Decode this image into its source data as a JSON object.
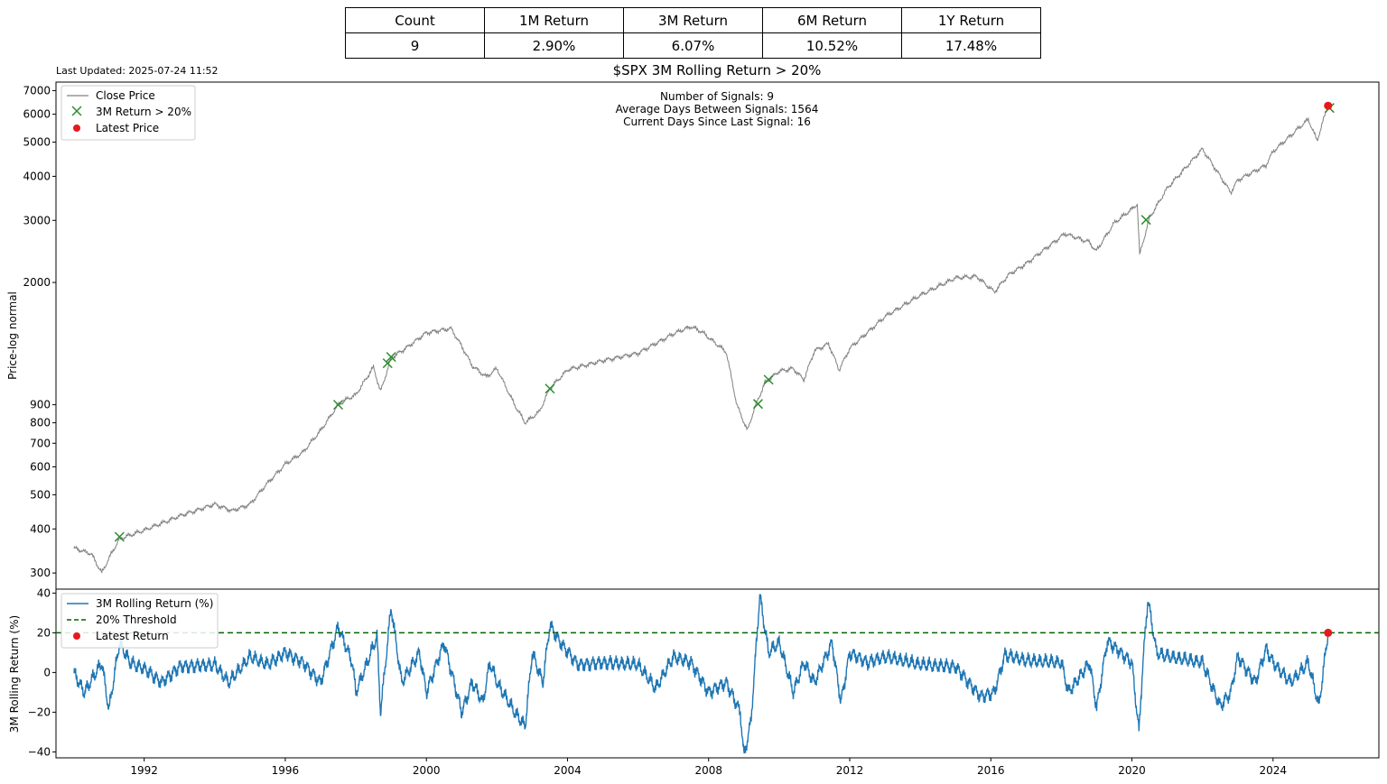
{
  "stats": {
    "headers": [
      "Count",
      "1M Return",
      "3M Return",
      "6M Return",
      "1Y Return"
    ],
    "values": [
      "9",
      "2.90%",
      "6.07%",
      "10.52%",
      "17.48%"
    ]
  },
  "last_updated": "Last Updated: 2025-07-24 11:52",
  "chart_data": [
    {
      "type": "line",
      "title": "$SPX 3M Rolling Return > 20%",
      "ylabel": "Price-log normal",
      "yscale": "log",
      "ylim": [
        270,
        7400
      ],
      "xlim": [
        1989.5,
        2027.0
      ],
      "y_ticks": [
        300,
        400,
        500,
        600,
        700,
        800,
        900,
        2000,
        3000,
        4000,
        5000,
        6000,
        7000
      ],
      "annotations": [
        "Number of Signals: 9",
        "Average Days Between Signals: 1564",
        "Current Days Since Last Signal: 16"
      ],
      "legend": [
        "Close Price",
        "3M Return > 20%",
        "Latest Price"
      ],
      "legend_position": "upper-left",
      "colors": {
        "close": "#808080",
        "signal": "#2e8b2e",
        "latest": "#e41a1c"
      },
      "series": [
        {
          "name": "Close Price",
          "x": [
            1990.0,
            1990.5,
            1990.8,
            1991.0,
            1991.3,
            1991.8,
            1992.5,
            1993.0,
            1994.0,
            1994.5,
            1995.0,
            1995.5,
            1996.0,
            1996.5,
            1997.0,
            1997.5,
            1997.8,
            1998.0,
            1998.5,
            1998.7,
            1999.0,
            1999.5,
            2000.0,
            2000.7,
            2001.0,
            2001.3,
            2001.7,
            2002.0,
            2002.5,
            2002.8,
            2003.2,
            2003.5,
            2004.0,
            2005.0,
            2006.0,
            2007.0,
            2007.5,
            2007.8,
            2008.5,
            2008.8,
            2009.1,
            2009.3,
            2009.6,
            2010.0,
            2010.4,
            2010.7,
            2011.0,
            2011.4,
            2011.7,
            2012.0,
            2013.0,
            2014.0,
            2015.0,
            2015.6,
            2016.1,
            2016.5,
            2017.0,
            2018.0,
            2018.1,
            2018.8,
            2018.98,
            2019.5,
            2020.0,
            2020.15,
            2020.22,
            2020.5,
            2021.0,
            2022.0,
            2022.4,
            2022.8,
            2023.0,
            2023.8,
            2024.0,
            2025.0,
            2025.25,
            2025.55
          ],
          "y": [
            353,
            340,
            300,
            330,
            375,
            390,
            415,
            435,
            470,
            450,
            470,
            540,
            610,
            660,
            760,
            900,
            940,
            960,
            1150,
            980,
            1220,
            1320,
            1440,
            1480,
            1320,
            1160,
            1080,
            1140,
            900,
            800,
            860,
            1000,
            1130,
            1200,
            1260,
            1430,
            1500,
            1450,
            1270,
            900,
            760,
            880,
            1040,
            1120,
            1140,
            1060,
            1280,
            1340,
            1130,
            1300,
            1600,
            1840,
            2060,
            2080,
            1880,
            2100,
            2260,
            2700,
            2750,
            2600,
            2450,
            2950,
            3230,
            3340,
            2400,
            3050,
            3700,
            4780,
            4150,
            3600,
            3900,
            4300,
            4700,
            5800,
            5050,
            6330
          ]
        }
      ],
      "signals": {
        "x": [
          1991.3,
          1997.5,
          1998.9,
          1999.0,
          2003.5,
          2009.4,
          2009.7,
          2020.4,
          2025.6
        ],
        "y": [
          380,
          900,
          1180,
          1230,
          1000,
          905,
          1060,
          3010,
          6250
        ]
      },
      "latest": {
        "x": 2025.56,
        "y": 6340
      }
    },
    {
      "type": "line",
      "ylabel": "3M Rolling Return (%)",
      "ylim": [
        -43,
        42
      ],
      "xlim": [
        1989.5,
        2027.0
      ],
      "y_ticks": [
        -40,
        -20,
        0,
        20,
        40
      ],
      "x_ticks": [
        "1992",
        "1996",
        "2000",
        "2004",
        "2008",
        "2012",
        "2016",
        "2020",
        "2024"
      ],
      "threshold": 20,
      "legend": [
        "3M Rolling Return (%)",
        "20% Threshold",
        "Latest Return"
      ],
      "legend_position": "upper-left",
      "colors": {
        "line": "#1f77b4",
        "threshold": "#006400",
        "latest": "#e41a1c"
      },
      "series": [
        {
          "name": "3M Rolling Return (%)",
          "x": [
            1990.0,
            1990.3,
            1990.8,
            1991.0,
            1991.3,
            1991.6,
            1992.0,
            1992.5,
            1993.0,
            1994.0,
            1994.4,
            1995.0,
            1995.5,
            1996.0,
            1996.5,
            1997.0,
            1997.5,
            1997.9,
            1998.0,
            1998.6,
            1998.7,
            1999.0,
            1999.3,
            1999.8,
            2000.0,
            2000.5,
            2001.0,
            2001.3,
            2001.6,
            2001.8,
            2002.0,
            2002.5,
            2002.8,
            2003.0,
            2003.3,
            2003.5,
            2003.8,
            2004.3,
            2005.0,
            2006.0,
            2006.5,
            2007.0,
            2007.5,
            2008.0,
            2008.5,
            2008.9,
            2009.0,
            2009.2,
            2009.45,
            2009.7,
            2010.0,
            2010.4,
            2010.7,
            2011.0,
            2011.5,
            2011.75,
            2012.0,
            2012.5,
            2013.0,
            2014.0,
            2015.0,
            2015.7,
            2016.1,
            2016.4,
            2017.0,
            2018.0,
            2018.2,
            2018.8,
            2019.0,
            2019.3,
            2020.0,
            2020.2,
            2020.3,
            2020.45,
            2020.7,
            2021.0,
            2022.0,
            2022.5,
            2022.8,
            2023.0,
            2023.5,
            2023.8,
            2024.0,
            2024.5,
            2025.0,
            2025.3,
            2025.56
          ],
          "values": [
            0,
            -10,
            5,
            -19,
            15,
            5,
            2,
            -5,
            3,
            4,
            -5,
            8,
            4,
            10,
            5,
            -5,
            23,
            5,
            -10,
            18,
            -20,
            33,
            -5,
            10,
            -10,
            15,
            -20,
            -5,
            -15,
            5,
            -5,
            -20,
            -27,
            10,
            -5,
            24,
            15,
            4,
            5,
            4,
            -8,
            8,
            5,
            -10,
            -5,
            -20,
            -42,
            -25,
            39,
            10,
            15,
            -10,
            5,
            -5,
            15,
            -15,
            10,
            5,
            8,
            4,
            3,
            -12,
            -10,
            9,
            6,
            5,
            -10,
            5,
            -18,
            16,
            5,
            -30,
            2,
            37,
            10,
            8,
            5,
            -17,
            -10,
            8,
            -5,
            12,
            5,
            -5,
            5,
            -17,
            20
          ]
        }
      ],
      "latest": {
        "x": 2025.56,
        "y": 20
      }
    }
  ]
}
